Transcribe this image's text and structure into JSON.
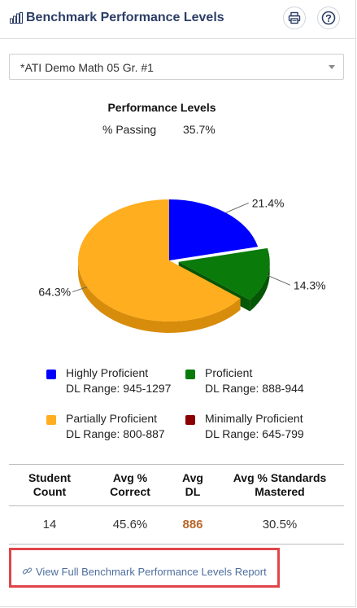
{
  "header": {
    "title": "Benchmark Performance Levels",
    "icons": {
      "chart": "bar-chart-icon",
      "print": "printer-icon",
      "help": "question-icon"
    }
  },
  "assessment_select": {
    "value": "*ATI Demo Math 05 Gr. #1"
  },
  "summary": {
    "passing_label": "% Passing",
    "passing_value": "35.7%"
  },
  "chart_data": {
    "type": "pie",
    "title": "Performance Levels",
    "slices": [
      {
        "name": "Highly Proficient",
        "value": 21.4,
        "label": "21.4%",
        "color": "#0000ff",
        "side_color": "#0000b0"
      },
      {
        "name": "Proficient",
        "value": 14.3,
        "label": "14.3%",
        "color": "#0a7a0a",
        "side_color": "#055605"
      },
      {
        "name": "Partially Proficient",
        "value": 64.3,
        "label": "64.3%",
        "color": "#ffae1f",
        "side_color": "#d88c0b"
      },
      {
        "name": "Minimally Proficient",
        "value": 0,
        "label": "",
        "color": "#8b0000",
        "side_color": "#5c0000"
      }
    ],
    "legend": [
      {
        "name": "Highly Proficient",
        "range": "DL Range: 945-1297",
        "color": "#0000ff"
      },
      {
        "name": "Proficient",
        "range": "DL Range: 888-944",
        "color": "#0a7a0a"
      },
      {
        "name": "Partially Proficient",
        "range": "DL Range: 800-887",
        "color": "#ffae1f"
      },
      {
        "name": "Minimally Proficient",
        "range": "DL Range: 645-799",
        "color": "#8b0000"
      }
    ]
  },
  "stats": {
    "headers": {
      "student_count": [
        "Student",
        "Count"
      ],
      "avg_correct": [
        "Avg %",
        "Correct"
      ],
      "avg_dl": [
        "Avg",
        "DL"
      ],
      "avg_standards": [
        "Avg % Standards",
        "Mastered"
      ]
    },
    "values": {
      "student_count": "14",
      "avg_correct": "45.6%",
      "avg_dl": "886",
      "avg_standards": "30.5%"
    },
    "colors": {
      "avg_dl": "#b8652a"
    }
  },
  "footer": {
    "link_label": "View Full Benchmark Performance Levels Report",
    "highlight_color": "#e0454a"
  }
}
